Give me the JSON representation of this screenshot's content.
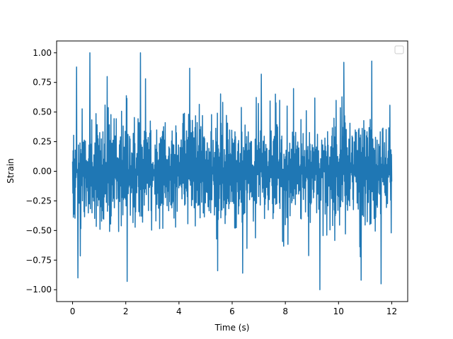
{
  "chart_data": {
    "type": "line",
    "title": "",
    "xlabel": "Time (s)",
    "ylabel": "Strain",
    "xlim": [
      -0.6,
      12.6
    ],
    "ylim": [
      -1.1,
      1.1
    ],
    "xticks": [
      0,
      2,
      4,
      6,
      8,
      10,
      12
    ],
    "yticks": [
      -1.0,
      -0.75,
      -0.5,
      -0.25,
      0.0,
      0.25,
      0.5,
      0.75,
      1.0
    ],
    "xtick_labels": [
      "0",
      "2",
      "4",
      "6",
      "8",
      "10",
      "12"
    ],
    "ytick_labels": [
      "−1.00",
      "−0.75",
      "−0.50",
      "−0.25",
      "0.00",
      "0.25",
      "0.50",
      "0.75",
      "1.00"
    ],
    "grid": false,
    "legend": {
      "placement": "top-right",
      "entries": []
    },
    "series": [
      {
        "color": "#1f77b4",
        "x_range": [
          0,
          12
        ],
        "approx_points": 1200,
        "y_range": [
          -1.0,
          1.0
        ],
        "typical_envelope": [
          -0.5,
          0.5
        ],
        "notable_peaks": [
          {
            "x": 0.15,
            "y": 0.88
          },
          {
            "x": 0.65,
            "y": 1.0
          },
          {
            "x": 1.3,
            "y": 0.8
          },
          {
            "x": 2.55,
            "y": 1.0
          },
          {
            "x": 4.4,
            "y": 0.87
          },
          {
            "x": 7.1,
            "y": 0.82
          },
          {
            "x": 10.2,
            "y": 0.92
          },
          {
            "x": 11.25,
            "y": 0.93
          }
        ],
        "notable_troughs": [
          {
            "x": 0.2,
            "y": -0.9
          },
          {
            "x": 2.05,
            "y": -0.93
          },
          {
            "x": 5.45,
            "y": -0.84
          },
          {
            "x": 6.4,
            "y": -0.86
          },
          {
            "x": 9.3,
            "y": -1.0
          },
          {
            "x": 10.85,
            "y": -0.92
          },
          {
            "x": 11.6,
            "y": -0.95
          }
        ]
      }
    ]
  }
}
